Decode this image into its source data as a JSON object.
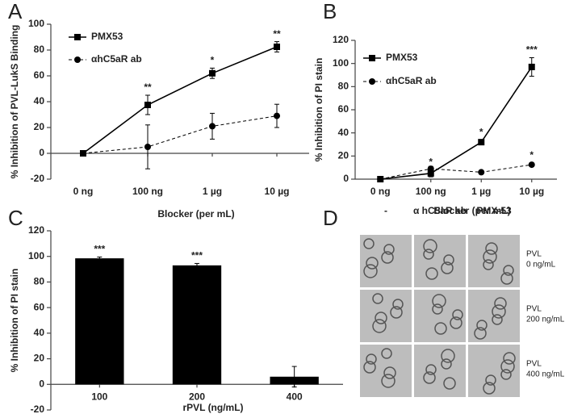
{
  "chart_data": [
    {
      "panel": "A",
      "type": "line",
      "x_label": "Blocker (per mL)",
      "y_label": "% Inhibition of PVL-LukS Binding",
      "categories": [
        "0 ng",
        "100 ng",
        "1 µg",
        "10 µg"
      ],
      "ylim": [
        -20,
        100
      ],
      "yticks": [
        -20,
        0,
        20,
        40,
        60,
        80,
        100
      ],
      "series": [
        {
          "name": "PMX53",
          "color": "#000000",
          "marker": "square",
          "dashed": false,
          "values": [
            0,
            37.5,
            62,
            82.5
          ],
          "errors": [
            0,
            7.5,
            4,
            4
          ],
          "significance": [
            null,
            "**",
            "*",
            "**"
          ]
        },
        {
          "name": "αhC5aR ab",
          "color": "#000000",
          "marker": "circle",
          "dashed": true,
          "values": [
            0,
            5,
            21,
            29
          ],
          "errors": [
            0,
            17,
            10,
            9
          ],
          "significance": [
            null,
            null,
            null,
            null
          ]
        }
      ]
    },
    {
      "panel": "B",
      "type": "line",
      "x_label": "Blocker (per mL)",
      "y_label": "% Inhibition of PI stain",
      "categories": [
        "0 ng",
        "100 ng",
        "1 µg",
        "10 µg"
      ],
      "ylim": [
        0,
        120
      ],
      "yticks": [
        0,
        20,
        40,
        60,
        80,
        100,
        120
      ],
      "series": [
        {
          "name": "PMX53",
          "color": "#000000",
          "marker": "square",
          "dashed": false,
          "values": [
            0,
            5,
            32,
            97
          ],
          "errors": [
            0,
            3,
            2,
            8
          ],
          "significance": [
            null,
            "*",
            "*",
            "***"
          ]
        },
        {
          "name": "αhC5aR ab",
          "color": "#000000",
          "marker": "circle",
          "dashed": true,
          "values": [
            0,
            9,
            6,
            12.5
          ],
          "errors": [
            0,
            2,
            1,
            1.5
          ],
          "significance": [
            null,
            null,
            null,
            "*"
          ]
        }
      ]
    },
    {
      "panel": "C",
      "type": "bar",
      "x_label": "rPVL (ng/mL)",
      "y_label": "% Inhibition of PI stain",
      "categories": [
        "100",
        "200",
        "400"
      ],
      "color": "#000000",
      "values": [
        98.5,
        93,
        6
      ],
      "errors": [
        1,
        1.5,
        8
      ],
      "significance": [
        "***",
        "***",
        null
      ],
      "ylim": [
        -20,
        120
      ],
      "yticks": [
        -20,
        0,
        20,
        40,
        60,
        80,
        100,
        120
      ]
    }
  ],
  "micrographs": {
    "panel": "D",
    "columns": [
      "-",
      "α hC5aR ab",
      "PMX-53"
    ],
    "rows": [
      [
        "PVL",
        "0 ng/mL"
      ],
      [
        "PVL",
        "200 ng/mL"
      ],
      [
        "PVL",
        "400 ng/mL"
      ]
    ]
  }
}
